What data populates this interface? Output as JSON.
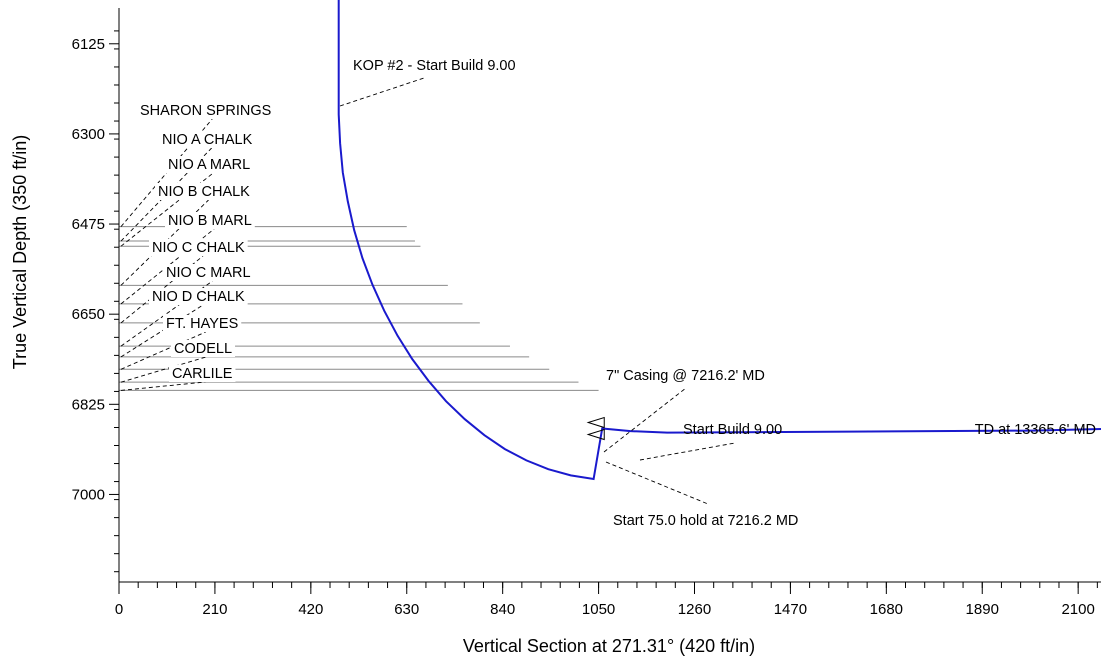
{
  "chart_data": {
    "type": "line",
    "xlabel": "Vertical Section at 271.31° (420 ft/in)",
    "ylabel": "True Vertical Depth (350 ft/in)",
    "xlim": [
      0,
      2150
    ],
    "ylim": [
      7170,
      6040
    ],
    "x_ticks": [
      0,
      210,
      420,
      630,
      840,
      1050,
      1260,
      1470,
      1680,
      1890,
      2100
    ],
    "y_ticks": [
      6125,
      6300,
      6475,
      6650,
      6825,
      7000
    ],
    "grid": false,
    "series": [
      {
        "type": "line",
        "color": "#1a1acd",
        "points": [
          [
            481,
            6040
          ],
          [
            481,
            6150
          ],
          [
            481,
            6262
          ],
          [
            484,
            6318
          ],
          [
            490,
            6375
          ],
          [
            501,
            6431
          ],
          [
            515,
            6487
          ],
          [
            533,
            6541
          ],
          [
            555,
            6593
          ],
          [
            581,
            6644
          ],
          [
            610,
            6692
          ],
          [
            642,
            6737
          ],
          [
            678,
            6780
          ],
          [
            716,
            6819
          ],
          [
            757,
            6854
          ],
          [
            800,
            6885
          ],
          [
            845,
            6912
          ],
          [
            892,
            6934
          ],
          [
            940,
            6951
          ],
          [
            989,
            6963
          ],
          [
            1039,
            6970
          ],
          [
            1058,
            6872
          ],
          [
            1120,
            6877
          ],
          [
            1200,
            6880
          ],
          [
            1600,
            6878
          ],
          [
            2000,
            6876
          ],
          [
            2150,
            6873
          ]
        ]
      }
    ],
    "formations": [
      {
        "name": "SHARON SPRINGS",
        "tvd": 6480,
        "length": 630
      },
      {
        "name": "NIO A CHALK",
        "tvd": 6508,
        "length": 648
      },
      {
        "name": "NIO A MARL",
        "tvd": 6518,
        "length": 660
      },
      {
        "name": "NIO B CHALK",
        "tvd": 6594,
        "length": 720
      },
      {
        "name": "NIO B MARL",
        "tvd": 6630,
        "length": 752
      },
      {
        "name": "NIO C CHALK",
        "tvd": 6667,
        "length": 790
      },
      {
        "name": "NIO C MARL",
        "tvd": 6712,
        "length": 856
      },
      {
        "name": "NIO D CHALK",
        "tvd": 6733,
        "length": 898
      },
      {
        "name": "FT.  HAYES",
        "tvd": 6757,
        "length": 942
      },
      {
        "name": "CODELL",
        "tvd": 6782,
        "length": 1006
      },
      {
        "name": "CARLILE",
        "tvd": 6798,
        "length": 1050
      }
    ],
    "annotations": [
      {
        "text": "KOP #2 - Start Build 9.00",
        "x": 481,
        "tvd": 6262
      },
      {
        "text": "7\" Casing @ 7216.2' MD",
        "x": 1058,
        "tvd": 6872
      },
      {
        "text": "Start Build 9.00",
        "x": 1120,
        "tvd": 6877
      },
      {
        "text": "Start 75.0 hold at 7216.2 MD",
        "x": 1058,
        "tvd": 6872
      },
      {
        "text": "TD at 13365.6' MD",
        "x": 2150,
        "tvd": 6873
      }
    ]
  }
}
